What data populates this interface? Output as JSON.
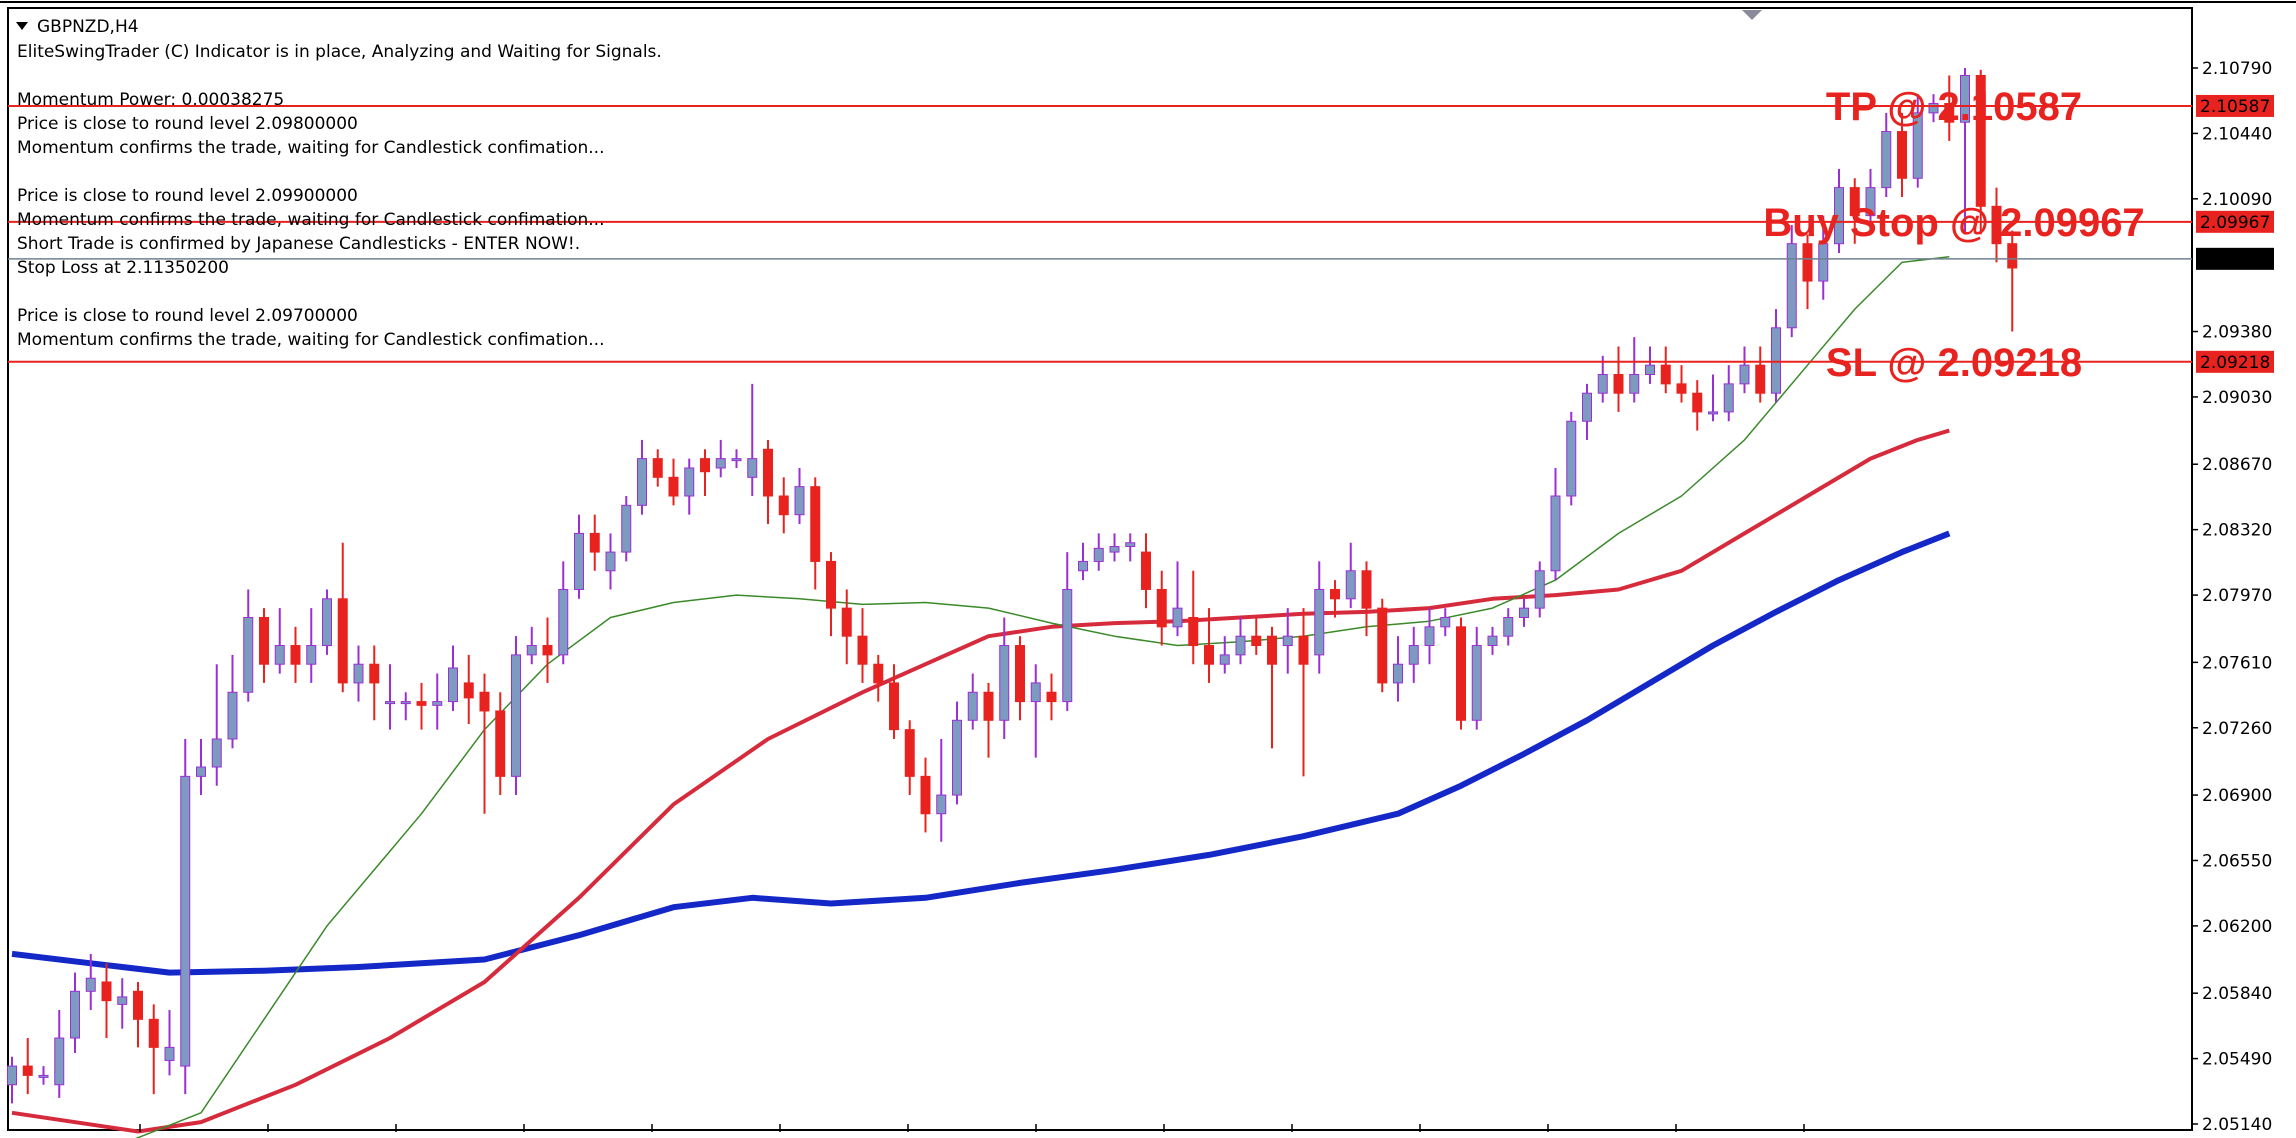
{
  "header": {
    "symbol": "GBPNZD,H4",
    "lines": [
      "EliteSwingTrader (C) Indicator is in place, Analyzing and Waiting for Signals.",
      "",
      "Momentum Power: 0.00038275",
      "Price is close to round level 2.09800000",
      "Momentum confirms the trade, waiting for Candlestick confimation...",
      "",
      "Price is close to round level 2.09900000",
      "Momentum confirms the trade, waiting for Candlestick confimation...",
      "Short Trade is confirmed by Japanese Candlesticks - ENTER NOW!.",
      "Stop Loss at 2.11350200",
      "",
      "Price is close to round level 2.09700000",
      "Momentum confirms the trade, waiting for Candlestick confimation..."
    ]
  },
  "colors": {
    "bull_body": "#7d9bc1",
    "bull_wick": "#9b2fd6",
    "bear": "#e8231f",
    "level_line": "#e8231f",
    "current_line": "#708090",
    "ma_green": "#3a8a2a",
    "ma_red": "#d62b3c",
    "ma_blue": "#1428c8",
    "label_text": "#e8231f"
  },
  "chart_data": {
    "type": "candlestick",
    "symbol": "GBPNZD",
    "timeframe": "H4",
    "ylim": [
      2.0514,
      2.1079
    ],
    "y_ticks": [
      "2.10790",
      "2.10440",
      "2.10090",
      "2.09380",
      "2.09030",
      "2.08670",
      "2.08320",
      "2.07970",
      "2.07610",
      "2.07260",
      "2.06900",
      "2.06550",
      "2.06200",
      "2.05840",
      "2.05490",
      "2.05140"
    ],
    "levels": [
      {
        "name": "TP",
        "value": 2.10587,
        "label": "TP @ 2.10587",
        "tag": "2.10587"
      },
      {
        "name": "Buy Stop",
        "value": 2.09967,
        "label": "Buy Stop @ 2.09967",
        "tag": "2.09967"
      },
      {
        "name": "SL",
        "value": 2.09218,
        "label": "SL @ 2.09218",
        "tag": "2.09218"
      }
    ],
    "current_price": {
      "value": 2.09769,
      "tag": "2.09769"
    },
    "candles": [
      [
        2.0535,
        2.0545,
        2.0525,
        2.055
      ],
      [
        2.0545,
        2.054,
        2.053,
        2.056
      ],
      [
        2.054,
        2.054,
        2.0535,
        2.0545
      ],
      [
        2.0535,
        2.056,
        2.0528,
        2.0575
      ],
      [
        2.056,
        2.0585,
        2.0552,
        2.0595
      ],
      [
        2.0585,
        2.0592,
        2.0575,
        2.0605
      ],
      [
        2.059,
        2.058,
        2.056,
        2.06
      ],
      [
        2.0578,
        2.0582,
        2.0565,
        2.0592
      ],
      [
        2.0585,
        2.057,
        2.0555,
        2.059
      ],
      [
        2.057,
        2.0555,
        2.053,
        2.0578
      ],
      [
        2.0548,
        2.0555,
        2.054,
        2.0575
      ],
      [
        2.0545,
        2.07,
        2.053,
        2.072
      ],
      [
        2.07,
        2.0705,
        2.069,
        2.072
      ],
      [
        2.0705,
        2.072,
        2.0695,
        2.076
      ],
      [
        2.072,
        2.0745,
        2.0715,
        2.0765
      ],
      [
        2.0745,
        2.0785,
        2.074,
        2.08
      ],
      [
        2.0785,
        2.076,
        2.075,
        2.079
      ],
      [
        2.076,
        2.077,
        2.0755,
        2.079
      ],
      [
        2.077,
        2.076,
        2.075,
        2.078
      ],
      [
        2.076,
        2.077,
        2.075,
        2.079
      ],
      [
        2.077,
        2.0795,
        2.0765,
        2.08
      ],
      [
        2.0795,
        2.075,
        2.0745,
        2.0825
      ],
      [
        2.075,
        2.076,
        2.074,
        2.077
      ],
      [
        2.076,
        2.075,
        2.073,
        2.077
      ],
      [
        2.074,
        2.074,
        2.0725,
        2.076
      ],
      [
        2.074,
        2.074,
        2.073,
        2.0745
      ],
      [
        2.074,
        2.0738,
        2.0725,
        2.075
      ],
      [
        2.0738,
        2.074,
        2.0725,
        2.0755
      ],
      [
        2.074,
        2.0758,
        2.0735,
        2.077
      ],
      [
        2.075,
        2.0742,
        2.0728,
        2.0765
      ],
      [
        2.0745,
        2.0735,
        2.068,
        2.0755
      ],
      [
        2.0735,
        2.07,
        2.069,
        2.0745
      ],
      [
        2.07,
        2.0765,
        2.069,
        2.0775
      ],
      [
        2.0765,
        2.077,
        2.076,
        2.078
      ],
      [
        2.077,
        2.0765,
        2.075,
        2.0785
      ],
      [
        2.0765,
        2.08,
        2.076,
        2.0815
      ],
      [
        2.08,
        2.083,
        2.0795,
        2.084
      ],
      [
        2.083,
        2.082,
        2.081,
        2.084
      ],
      [
        2.081,
        2.082,
        2.08,
        2.083
      ],
      [
        2.082,
        2.0845,
        2.0815,
        2.085
      ],
      [
        2.0845,
        2.087,
        2.084,
        2.088
      ],
      [
        2.087,
        2.086,
        2.0855,
        2.0875
      ],
      [
        2.086,
        2.085,
        2.0845,
        2.087
      ],
      [
        2.085,
        2.0865,
        2.084,
        2.087
      ],
      [
        2.087,
        2.0863,
        2.085,
        2.0875
      ],
      [
        2.0865,
        2.087,
        2.086,
        2.088
      ],
      [
        2.087,
        2.087,
        2.0865,
        2.0875
      ],
      [
        2.086,
        2.087,
        2.085,
        2.091
      ],
      [
        2.0875,
        2.085,
        2.0835,
        2.088
      ],
      [
        2.085,
        2.084,
        2.083,
        2.086
      ],
      [
        2.084,
        2.0855,
        2.0835,
        2.0865
      ],
      [
        2.0855,
        2.0815,
        2.08,
        2.086
      ],
      [
        2.0815,
        2.079,
        2.0775,
        2.082
      ],
      [
        2.079,
        2.0775,
        2.076,
        2.08
      ],
      [
        2.0775,
        2.076,
        2.075,
        2.079
      ],
      [
        2.076,
        2.075,
        2.074,
        2.0765
      ],
      [
        2.075,
        2.0725,
        2.072,
        2.076
      ],
      [
        2.0725,
        2.07,
        2.069,
        2.073
      ],
      [
        2.07,
        2.068,
        2.067,
        2.071
      ],
      [
        2.068,
        2.069,
        2.0665,
        2.072
      ],
      [
        2.069,
        2.073,
        2.0685,
        2.074
      ],
      [
        2.073,
        2.0745,
        2.0725,
        2.0755
      ],
      [
        2.0745,
        2.073,
        2.071,
        2.075
      ],
      [
        2.073,
        2.077,
        2.072,
        2.0785
      ],
      [
        2.077,
        2.074,
        2.073,
        2.0775
      ],
      [
        2.074,
        2.075,
        2.071,
        2.076
      ],
      [
        2.0745,
        2.074,
        2.073,
        2.0755
      ],
      [
        2.074,
        2.08,
        2.0735,
        2.082
      ],
      [
        2.081,
        2.0815,
        2.0805,
        2.0825
      ],
      [
        2.0815,
        2.0822,
        2.081,
        2.083
      ],
      [
        2.082,
        2.0823,
        2.0815,
        2.083
      ],
      [
        2.0823,
        2.0825,
        2.0815,
        2.083
      ],
      [
        2.082,
        2.08,
        2.079,
        2.083
      ],
      [
        2.08,
        2.078,
        2.077,
        2.081
      ],
      [
        2.078,
        2.079,
        2.0775,
        2.0815
      ],
      [
        2.0785,
        2.077,
        2.076,
        2.081
      ],
      [
        2.077,
        2.076,
        2.075,
        2.079
      ],
      [
        2.076,
        2.0765,
        2.0755,
        2.0775
      ],
      [
        2.0765,
        2.0775,
        2.076,
        2.0785
      ],
      [
        2.0775,
        2.077,
        2.0765,
        2.0785
      ],
      [
        2.0775,
        2.076,
        2.0715,
        2.078
      ],
      [
        2.077,
        2.0775,
        2.0755,
        2.079
      ],
      [
        2.0775,
        2.076,
        2.07,
        2.079
      ],
      [
        2.0765,
        2.08,
        2.0755,
        2.0815
      ],
      [
        2.08,
        2.0795,
        2.0785,
        2.0805
      ],
      [
        2.0795,
        2.081,
        2.079,
        2.0825
      ],
      [
        2.081,
        2.079,
        2.0775,
        2.0815
      ],
      [
        2.079,
        2.075,
        2.0745,
        2.0795
      ],
      [
        2.075,
        2.076,
        2.074,
        2.0775
      ],
      [
        2.076,
        2.077,
        2.075,
        2.078
      ],
      [
        2.077,
        2.078,
        2.076,
        2.079
      ],
      [
        2.078,
        2.0785,
        2.0775,
        2.079
      ],
      [
        2.078,
        2.073,
        2.0725,
        2.0785
      ],
      [
        2.073,
        2.077,
        2.0725,
        2.078
      ],
      [
        2.077,
        2.0775,
        2.0765,
        2.078
      ],
      [
        2.0775,
        2.0785,
        2.077,
        2.079
      ],
      [
        2.0785,
        2.079,
        2.078,
        2.0795
      ],
      [
        2.079,
        2.081,
        2.0785,
        2.0815
      ],
      [
        2.081,
        2.085,
        2.0805,
        2.0865
      ],
      [
        2.085,
        2.089,
        2.0845,
        2.0895
      ],
      [
        2.089,
        2.0905,
        2.088,
        2.091
      ],
      [
        2.0905,
        2.0915,
        2.09,
        2.0925
      ],
      [
        2.0915,
        2.0905,
        2.0895,
        2.093
      ],
      [
        2.0905,
        2.0915,
        2.09,
        2.0935
      ],
      [
        2.0915,
        2.092,
        2.091,
        2.093
      ],
      [
        2.092,
        2.091,
        2.0905,
        2.093
      ],
      [
        2.091,
        2.0905,
        2.09,
        2.092
      ],
      [
        2.0905,
        2.0895,
        2.0885,
        2.0912
      ],
      [
        2.0895,
        2.0895,
        2.089,
        2.0915
      ],
      [
        2.0895,
        2.091,
        2.089,
        2.092
      ],
      [
        2.091,
        2.092,
        2.0905,
        2.093
      ],
      [
        2.092,
        2.0905,
        2.09,
        2.093
      ],
      [
        2.0905,
        2.094,
        2.09,
        2.095
      ],
      [
        2.094,
        2.0985,
        2.0935,
        2.0995
      ],
      [
        2.0985,
        2.0965,
        2.095,
        2.099
      ],
      [
        2.0965,
        2.0985,
        2.0955,
        2.1
      ],
      [
        2.0985,
        2.1015,
        2.098,
        2.1025
      ],
      [
        2.1015,
        2.1,
        2.0985,
        2.102
      ],
      [
        2.1,
        2.1015,
        2.0995,
        2.1025
      ],
      [
        2.1015,
        2.1045,
        2.101,
        2.1055
      ],
      [
        2.1045,
        2.102,
        2.101,
        2.1055
      ],
      [
        2.102,
        2.1055,
        2.1015,
        2.1065
      ],
      [
        2.1055,
        2.106,
        2.105,
        2.1065
      ],
      [
        2.106,
        2.105,
        2.104,
        2.1075
      ],
      [
        2.105,
        2.1075,
        2.099,
        2.1079
      ],
      [
        2.1075,
        2.1005,
        2.099,
        2.1078
      ],
      [
        2.1005,
        2.0985,
        2.0975,
        2.1015
      ],
      [
        2.0985,
        2.0972,
        2.0938,
        2.0992
      ]
    ],
    "ma_green": [
      [
        0,
        2.048
      ],
      [
        12,
        2.052
      ],
      [
        20,
        2.062
      ],
      [
        26,
        2.068
      ],
      [
        30,
        2.0725
      ],
      [
        34,
        2.076
      ],
      [
        38,
        2.0785
      ],
      [
        42,
        2.0793
      ],
      [
        46,
        2.0797
      ],
      [
        50,
        2.0795
      ],
      [
        54,
        2.0792
      ],
      [
        58,
        2.0793
      ],
      [
        62,
        2.079
      ],
      [
        66,
        2.0782
      ],
      [
        70,
        2.0775
      ],
      [
        74,
        2.077
      ],
      [
        78,
        2.0772
      ],
      [
        82,
        2.0775
      ],
      [
        86,
        2.078
      ],
      [
        90,
        2.0783
      ],
      [
        94,
        2.079
      ],
      [
        98,
        2.0805
      ],
      [
        102,
        2.083
      ],
      [
        106,
        2.085
      ],
      [
        110,
        2.088
      ],
      [
        114,
        2.092
      ],
      [
        117,
        2.095
      ],
      [
        120,
        2.0975
      ],
      [
        123,
        2.0978
      ]
    ],
    "ma_red": [
      [
        0,
        2.052
      ],
      [
        8,
        2.051
      ],
      [
        12,
        2.0515
      ],
      [
        18,
        2.0535
      ],
      [
        24,
        2.056
      ],
      [
        30,
        2.059
      ],
      [
        36,
        2.0635
      ],
      [
        42,
        2.0685
      ],
      [
        48,
        2.072
      ],
      [
        54,
        2.0745
      ],
      [
        58,
        2.076
      ],
      [
        62,
        2.0775
      ],
      [
        66,
        2.078
      ],
      [
        70,
        2.0782
      ],
      [
        74,
        2.0783
      ],
      [
        78,
        2.0785
      ],
      [
        82,
        2.0787
      ],
      [
        86,
        2.0788
      ],
      [
        90,
        2.079
      ],
      [
        94,
        2.0795
      ],
      [
        98,
        2.0797
      ],
      [
        102,
        2.08
      ],
      [
        106,
        2.081
      ],
      [
        110,
        2.083
      ],
      [
        114,
        2.085
      ],
      [
        118,
        2.087
      ],
      [
        121,
        2.088
      ],
      [
        123,
        2.0885
      ]
    ],
    "ma_blue": [
      [
        0,
        2.0605
      ],
      [
        5,
        2.06
      ],
      [
        10,
        2.0595
      ],
      [
        16,
        2.0596
      ],
      [
        22,
        2.0598
      ],
      [
        30,
        2.0602
      ],
      [
        36,
        2.0615
      ],
      [
        42,
        2.063
      ],
      [
        47,
        2.0635
      ],
      [
        52,
        2.0632
      ],
      [
        58,
        2.0635
      ],
      [
        64,
        2.0643
      ],
      [
        70,
        2.065
      ],
      [
        76,
        2.0658
      ],
      [
        82,
        2.0668
      ],
      [
        88,
        2.068
      ],
      [
        92,
        2.0695
      ],
      [
        96,
        2.0712
      ],
      [
        100,
        2.073
      ],
      [
        104,
        2.075
      ],
      [
        108,
        2.077
      ],
      [
        112,
        2.0788
      ],
      [
        116,
        2.0805
      ],
      [
        120,
        2.082
      ],
      [
        123,
        2.083
      ]
    ]
  }
}
